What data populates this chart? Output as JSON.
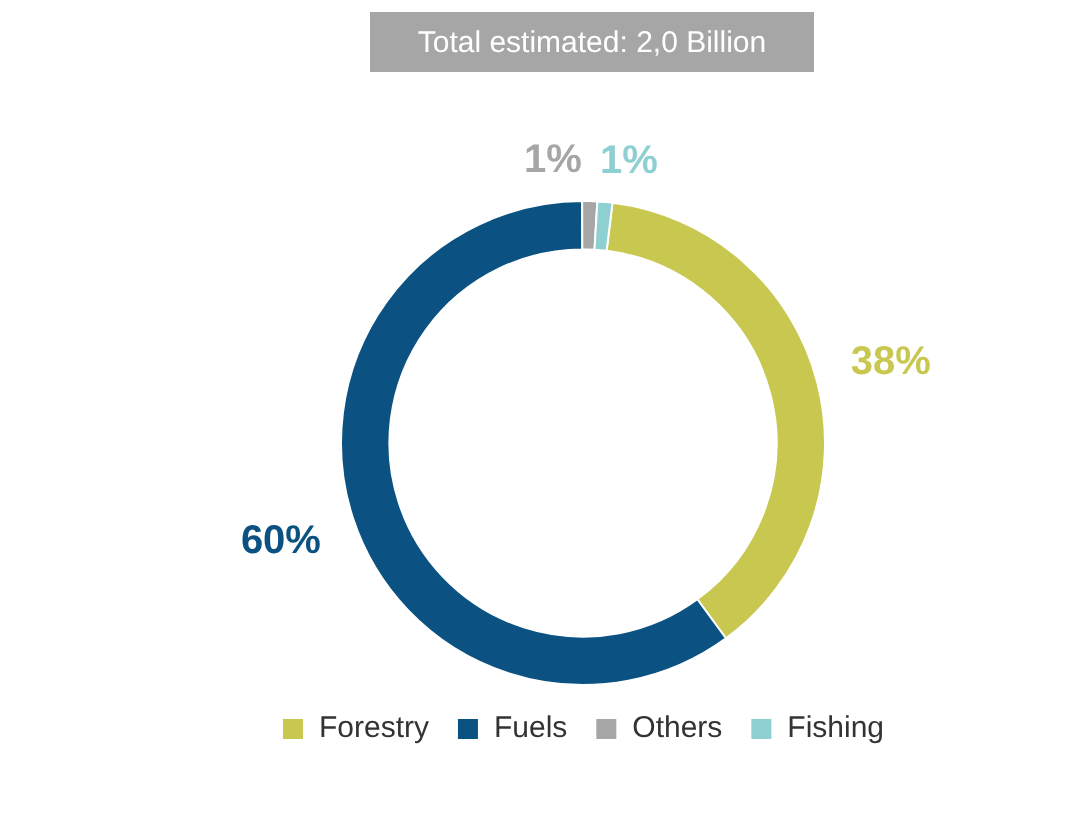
{
  "chart_data": {
    "type": "donut",
    "title": "Total estimated: 2,0 Billion",
    "categories": [
      "Forestry",
      "Fuels",
      "Others",
      "Fishing"
    ],
    "values": [
      38,
      60,
      1,
      1
    ],
    "value_labels": [
      "38%",
      "60%",
      "1%",
      "1%"
    ],
    "colors": [
      "#c8c850",
      "#0b5282",
      "#a6a6a6",
      "#8ecfd2"
    ],
    "legend": "bottom"
  }
}
